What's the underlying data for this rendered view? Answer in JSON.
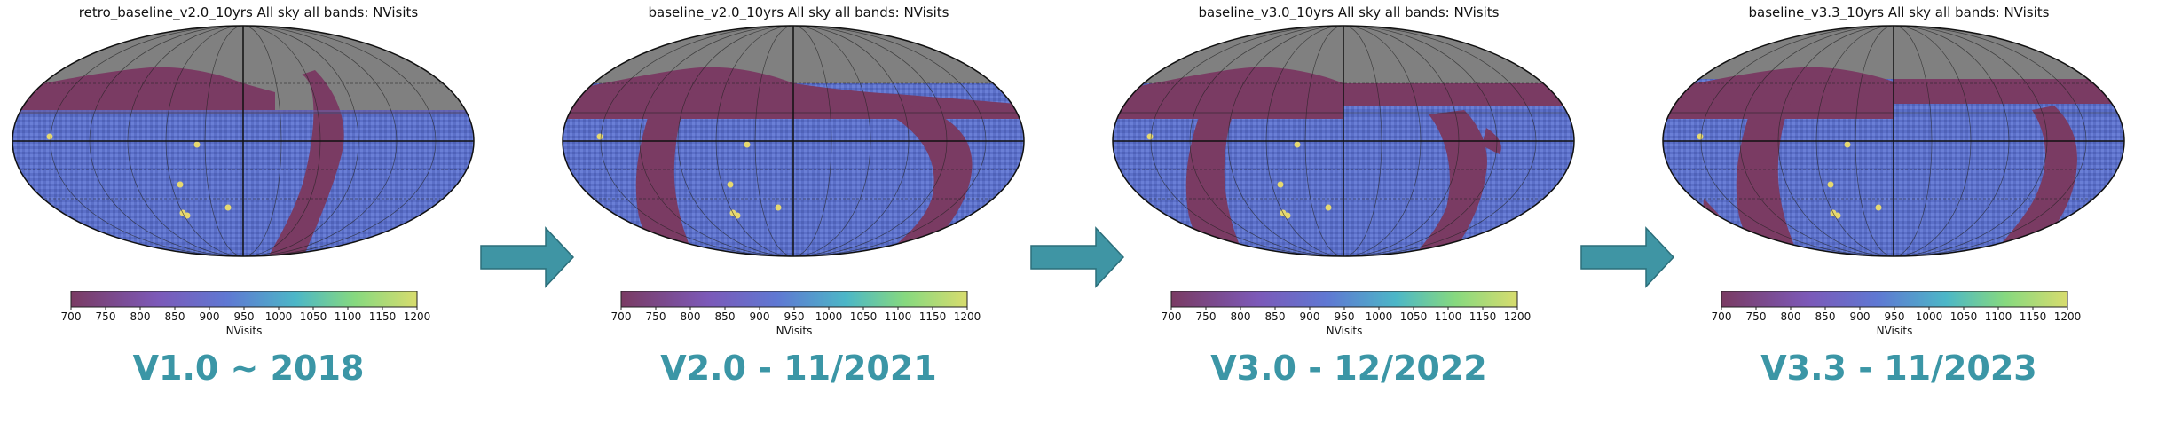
{
  "chart_data": [
    {
      "type": "heatmap",
      "projection": "mollweide",
      "title": "retro_baseline_v2.0_10yrs All sky all bands: NVisits",
      "colorbar": {
        "label": "NVisits",
        "ticks": [
          "700",
          "750",
          "800",
          "850",
          "900",
          "950",
          "1000",
          "1050",
          "1100",
          "1150",
          "1200"
        ],
        "range": [
          700,
          1200
        ]
      },
      "version": "V1.0 ~ 2018"
    },
    {
      "type": "heatmap",
      "projection": "mollweide",
      "title": "baseline_v2.0_10yrs All sky all bands: NVisits",
      "colorbar": {
        "label": "NVisits",
        "ticks": [
          "700",
          "750",
          "800",
          "850",
          "900",
          "950",
          "1000",
          "1050",
          "1100",
          "1150",
          "1200"
        ],
        "range": [
          700,
          1200
        ]
      },
      "version": "V2.0 - 11/2021"
    },
    {
      "type": "heatmap",
      "projection": "mollweide",
      "title": "baseline_v3.0_10yrs All sky all bands: NVisits",
      "colorbar": {
        "label": "NVisits",
        "ticks": [
          "700",
          "750",
          "800",
          "850",
          "900",
          "950",
          "1000",
          "1050",
          "1100",
          "1150",
          "1200"
        ],
        "range": [
          700,
          1200
        ]
      },
      "version": "V3.0 - 12/2022"
    },
    {
      "type": "heatmap",
      "projection": "mollweide",
      "title": "baseline_v3.3_10yrs All sky all bands: NVisits",
      "colorbar": {
        "label": "NVisits",
        "ticks": [
          "700",
          "750",
          "800",
          "850",
          "900",
          "950",
          "1000",
          "1050",
          "1100",
          "1150",
          "1200"
        ],
        "range": [
          700,
          1200
        ]
      },
      "version": "V3.3 - 11/2023"
    }
  ],
  "colors": {
    "masked": "#808080",
    "low": "#7a3b63",
    "mid": "#5f78d3",
    "high": "#d8dc6e",
    "arrow": "#3f95a4",
    "version_text": "#3b96a6"
  }
}
